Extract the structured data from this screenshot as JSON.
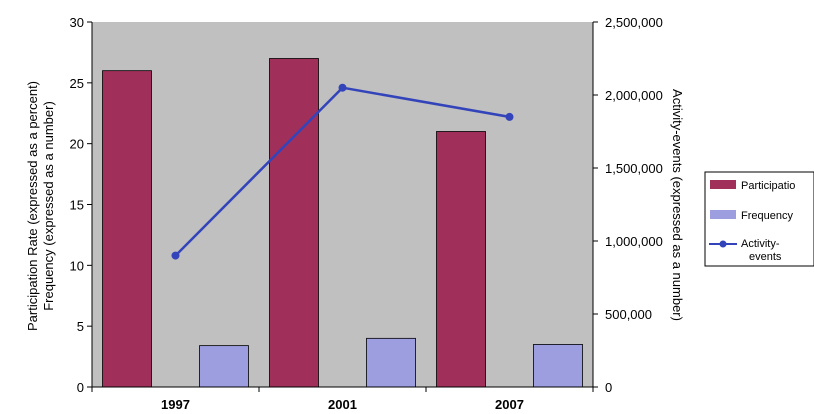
{
  "chart_data": {
    "type": "bar",
    "categories": [
      "1997",
      "2001",
      "2007"
    ],
    "series": [
      {
        "name": "Participatio",
        "kind": "bar",
        "axis": "left",
        "values": [
          26,
          27,
          21
        ],
        "color": "#a0305a"
      },
      {
        "name": "Frequency",
        "kind": "bar",
        "axis": "left",
        "values": [
          3.4,
          4.0,
          3.5
        ],
        "color": "#9c9ee0"
      },
      {
        "name": "Activity-events",
        "legend_lines": [
          "Activity-",
          "events"
        ],
        "kind": "line",
        "axis": "right",
        "values": [
          900000,
          2050000,
          1850000
        ],
        "color": "#3344bb"
      }
    ],
    "ylabel_lines": [
      "Participation Rate (expressed as a percent)",
      "Frequency (expressed as a number)"
    ],
    "y2label": "Activity-events (expressed as a number)",
    "ylim": [
      0,
      30
    ],
    "yticks": [
      "0",
      "5",
      "10",
      "15",
      "20",
      "25",
      "30"
    ],
    "y2lim": [
      0,
      2500000
    ],
    "y2ticks": [
      "0",
      "500,000",
      "1,000,000",
      "1,500,000",
      "2,000,000",
      "2,500,000"
    ],
    "plot_background": "#c0c0c0",
    "grid": false,
    "legend_position": "right"
  }
}
